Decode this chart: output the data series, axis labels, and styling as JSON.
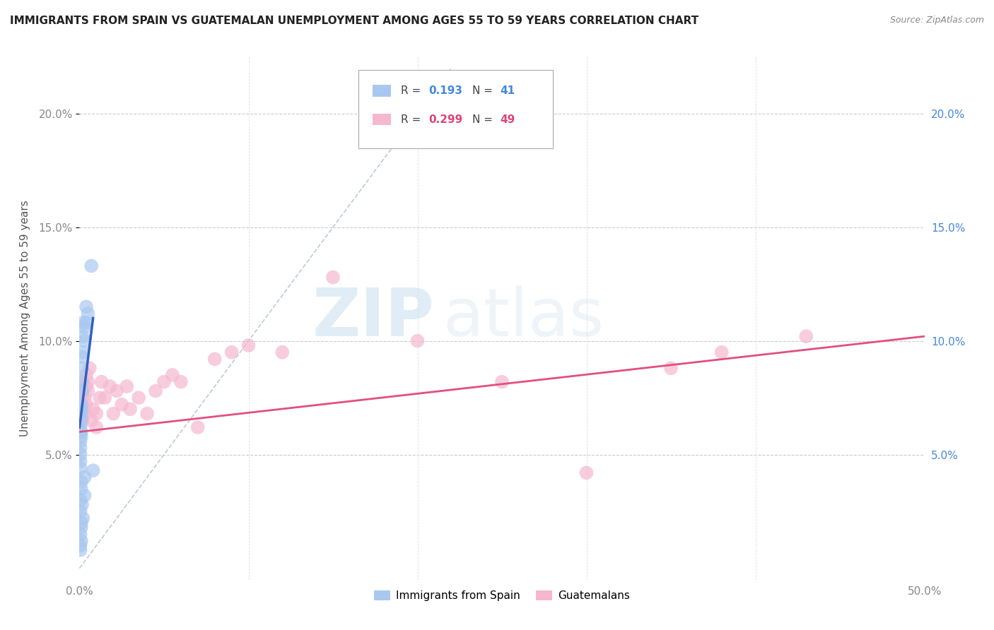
{
  "title": "IMMIGRANTS FROM SPAIN VS GUATEMALAN UNEMPLOYMENT AMONG AGES 55 TO 59 YEARS CORRELATION CHART",
  "source": "Source: ZipAtlas.com",
  "ylabel": "Unemployment Among Ages 55 to 59 years",
  "xlim": [
    0,
    0.5
  ],
  "ylim": [
    -0.005,
    0.225
  ],
  "yticks": [
    0.05,
    0.1,
    0.15,
    0.2
  ],
  "ytick_labels": [
    "5.0%",
    "10.0%",
    "15.0%",
    "20.0%"
  ],
  "watermark_zip": "ZIP",
  "watermark_atlas": "atlas",
  "blue_color": "#a8c8f0",
  "pink_color": "#f5b8cf",
  "blue_line_color": "#3060c0",
  "pink_line_color": "#e05080",
  "legend_r_color_blue": "#4488dd",
  "legend_r_color_pink": "#dd4477",
  "blue_scatter_x": [
    0.0005,
    0.0005,
    0.0005,
    0.0005,
    0.0005,
    0.0005,
    0.0005,
    0.001,
    0.001,
    0.001,
    0.001,
    0.001,
    0.001,
    0.0015,
    0.0015,
    0.0015,
    0.0015,
    0.002,
    0.002,
    0.002,
    0.003,
    0.003,
    0.004,
    0.004,
    0.005,
    0.007,
    0.0005,
    0.0005,
    0.001,
    0.001,
    0.0015,
    0.003,
    0.008,
    0.002,
    0.001,
    0.001,
    0.0005,
    0.001,
    0.0005,
    0.0005,
    0.003
  ],
  "blue_scatter_y": [
    0.062,
    0.06,
    0.056,
    0.053,
    0.05,
    0.047,
    0.044,
    0.07,
    0.065,
    0.06,
    0.068,
    0.072,
    0.058,
    0.082,
    0.088,
    0.093,
    0.078,
    0.095,
    0.102,
    0.108,
    0.1,
    0.106,
    0.108,
    0.115,
    0.112,
    0.133,
    0.03,
    0.025,
    0.035,
    0.038,
    0.028,
    0.04,
    0.043,
    0.022,
    0.02,
    0.018,
    0.015,
    0.012,
    0.01,
    0.008,
    0.032
  ],
  "pink_scatter_x": [
    0.0005,
    0.0005,
    0.001,
    0.001,
    0.001,
    0.0015,
    0.0015,
    0.002,
    0.002,
    0.002,
    0.003,
    0.003,
    0.004,
    0.004,
    0.004,
    0.005,
    0.005,
    0.006,
    0.007,
    0.008,
    0.01,
    0.01,
    0.012,
    0.013,
    0.015,
    0.018,
    0.02,
    0.022,
    0.025,
    0.028,
    0.03,
    0.035,
    0.04,
    0.045,
    0.05,
    0.055,
    0.06,
    0.07,
    0.08,
    0.09,
    0.1,
    0.12,
    0.15,
    0.2,
    0.25,
    0.3,
    0.35,
    0.38,
    0.43
  ],
  "pink_scatter_y": [
    0.065,
    0.07,
    0.075,
    0.068,
    0.072,
    0.078,
    0.082,
    0.065,
    0.07,
    0.078,
    0.068,
    0.075,
    0.08,
    0.072,
    0.085,
    0.082,
    0.078,
    0.088,
    0.065,
    0.07,
    0.062,
    0.068,
    0.075,
    0.082,
    0.075,
    0.08,
    0.068,
    0.078,
    0.072,
    0.08,
    0.07,
    0.075,
    0.068,
    0.078,
    0.082,
    0.085,
    0.082,
    0.062,
    0.092,
    0.095,
    0.098,
    0.095,
    0.128,
    0.1,
    0.082,
    0.042,
    0.088,
    0.095,
    0.102
  ],
  "blue_trend_x": [
    0.0,
    0.008
  ],
  "blue_trend_y": [
    0.062,
    0.11
  ],
  "pink_trend_x": [
    0.0,
    0.5
  ],
  "pink_trend_y": [
    0.06,
    0.102
  ],
  "diag_line_x": [
    0.0,
    0.22
  ],
  "diag_line_y": [
    0.0,
    0.22
  ]
}
